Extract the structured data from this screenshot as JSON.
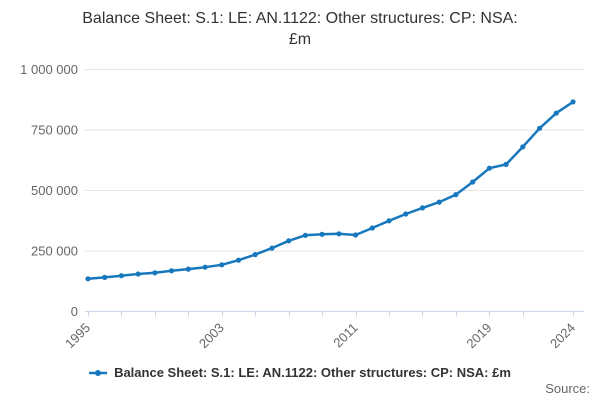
{
  "title": {
    "line1": "Balance Sheet: S.1: LE: AN.1122: Other structures: CP: NSA:",
    "line2": "£m"
  },
  "legend": {
    "label": "Balance Sheet: S.1: LE: AN.1122: Other structures: CP: NSA: £m"
  },
  "source_label": "Source:",
  "colors": {
    "line": "#1878be",
    "grid": "#e6e6e6",
    "axis": "#ccd6eb",
    "axis_text": "#666666",
    "title_text": "#333333",
    "legend_text": "#333333",
    "source_text": "#666666",
    "background": "#ffffff"
  },
  "chart_data": {
    "type": "line",
    "title": "Balance Sheet: S.1: LE: AN.1122: Other structures: CP: NSA: £m",
    "xlabel": "",
    "ylabel": "",
    "x": [
      1995,
      1996,
      1997,
      1998,
      1999,
      2000,
      2001,
      2002,
      2003,
      2004,
      2005,
      2006,
      2007,
      2008,
      2009,
      2010,
      2011,
      2012,
      2013,
      2014,
      2015,
      2016,
      2017,
      2018,
      2019,
      2020,
      2021,
      2022,
      2023,
      2024
    ],
    "series": [
      {
        "name": "Balance Sheet: S.1: LE: AN.1122: Other structures: CP: NSA: £m",
        "values": [
          135000,
          141000,
          148000,
          155000,
          160000,
          168000,
          175000,
          183000,
          193000,
          212000,
          235000,
          262000,
          292000,
          315000,
          319000,
          321000,
          316000,
          345000,
          375000,
          403000,
          428000,
          452000,
          483000,
          535000,
          592000,
          608000,
          680000,
          757000,
          820000,
          866000
        ]
      }
    ],
    "ylim": [
      0,
      1000000
    ],
    "yticks": [
      0,
      250000,
      500000,
      750000,
      1000000
    ],
    "ytick_labels": [
      "0",
      "250 000",
      "500 000",
      "750 000",
      "1 000 000"
    ],
    "xtick_years": [
      1995,
      1997,
      1999,
      2001,
      2003,
      2005,
      2007,
      2009,
      2011,
      2013,
      2015,
      2017,
      2019,
      2021,
      2024
    ],
    "xtick_labeled_years": [
      1995,
      2003,
      2011,
      2019,
      2024
    ],
    "xtick_label_rotation": -45,
    "grid": "horizontal",
    "legend_position": "bottom",
    "marker": "circle"
  }
}
